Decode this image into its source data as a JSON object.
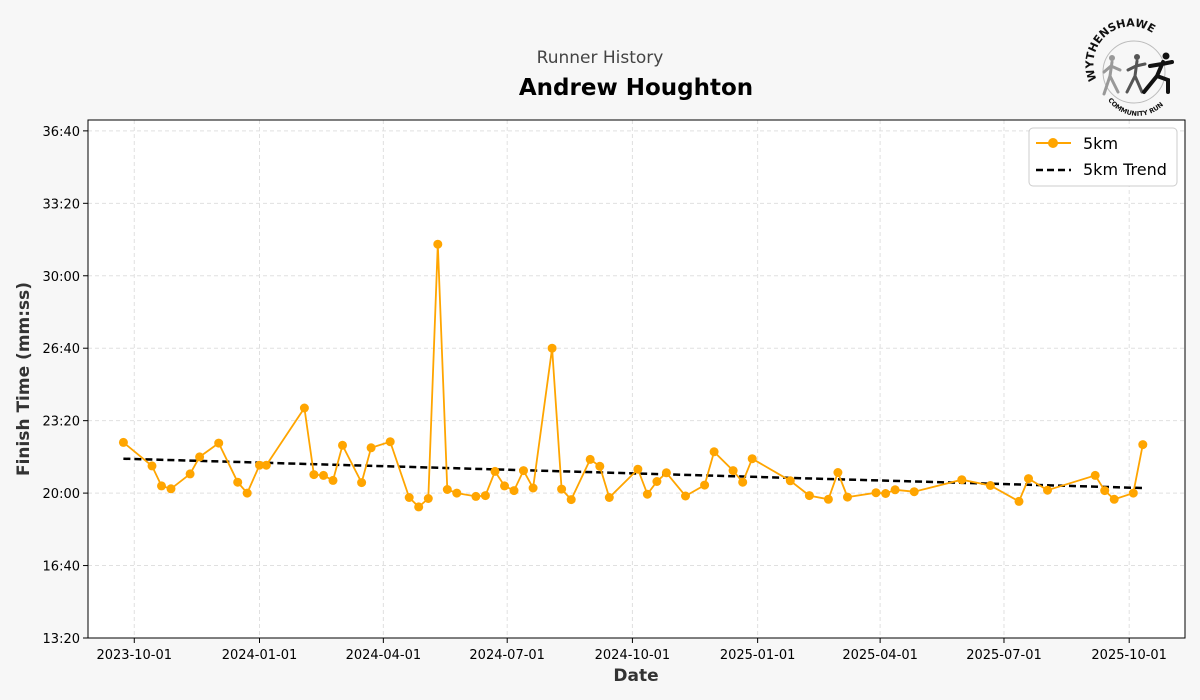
{
  "chart_data": {
    "type": "line",
    "suptitle": "Runner History",
    "title": "Andrew Houghton",
    "xlabel": "Date",
    "ylabel": "Finish Time (mm:ss)",
    "x_type": "date",
    "xlim": [
      "2023-08-28",
      "2025-11-11"
    ],
    "ylim_seconds": [
      800,
      2230
    ],
    "y_ticks": [
      "13:20",
      "16:40",
      "20:00",
      "23:20",
      "26:40",
      "30:00",
      "33:20",
      "36:40"
    ],
    "x_ticks": [
      "2023-10-01",
      "2024-01-01",
      "2024-04-01",
      "2024-07-01",
      "2024-10-01",
      "2025-01-01",
      "2025-04-01",
      "2025-07-01",
      "2025-10-01"
    ],
    "grid": true,
    "legend_position": "top-right",
    "colors": {
      "series": "#FFA500",
      "trend": "#000000",
      "background": "#f7f7f7"
    },
    "series": [
      {
        "name": "5km",
        "style": "line-marker",
        "points": [
          [
            "2023-09-23",
            "22:20"
          ],
          [
            "2023-10-14",
            "21:15"
          ],
          [
            "2023-10-21",
            "20:20"
          ],
          [
            "2023-10-28",
            "20:12"
          ],
          [
            "2023-11-11",
            "20:53"
          ],
          [
            "2023-11-18",
            "21:40"
          ],
          [
            "2023-12-02",
            "22:18"
          ],
          [
            "2023-12-16",
            "20:30"
          ],
          [
            "2023-12-23",
            "20:00"
          ],
          [
            "2024-01-01",
            "21:17"
          ],
          [
            "2024-01-06",
            "21:17"
          ],
          [
            "2024-02-03",
            "23:55"
          ],
          [
            "2024-02-10",
            "20:51"
          ],
          [
            "2024-02-17",
            "20:49"
          ],
          [
            "2024-02-24",
            "20:35"
          ],
          [
            "2024-03-02",
            "22:12"
          ],
          [
            "2024-03-16",
            "20:29"
          ],
          [
            "2024-03-23",
            "22:05"
          ],
          [
            "2024-04-06",
            "22:22"
          ],
          [
            "2024-04-20",
            "19:48"
          ],
          [
            "2024-04-27",
            "19:22"
          ],
          [
            "2024-05-04",
            "19:45"
          ],
          [
            "2024-05-11",
            "31:27"
          ],
          [
            "2024-05-18",
            "20:10"
          ],
          [
            "2024-05-25",
            "20:00"
          ],
          [
            "2024-06-08",
            "19:51"
          ],
          [
            "2024-06-15",
            "19:53"
          ],
          [
            "2024-06-22",
            "21:00"
          ],
          [
            "2024-06-29",
            "20:20"
          ],
          [
            "2024-07-06",
            "20:07"
          ],
          [
            "2024-07-13",
            "21:02"
          ],
          [
            "2024-07-20",
            "20:14"
          ],
          [
            "2024-08-03",
            "26:40"
          ],
          [
            "2024-08-10",
            "20:11"
          ],
          [
            "2024-08-17",
            "19:42"
          ],
          [
            "2024-08-31",
            "21:33"
          ],
          [
            "2024-09-07",
            "21:14"
          ],
          [
            "2024-09-14",
            "19:48"
          ],
          [
            "2024-10-05",
            "21:06"
          ],
          [
            "2024-10-12",
            "19:57"
          ],
          [
            "2024-10-19",
            "20:32"
          ],
          [
            "2024-10-26",
            "20:56"
          ],
          [
            "2024-11-09",
            "19:52"
          ],
          [
            "2024-11-23",
            "20:22"
          ],
          [
            "2024-11-30",
            "21:54"
          ],
          [
            "2024-12-14",
            "21:02"
          ],
          [
            "2024-12-21",
            "20:30"
          ],
          [
            "2024-12-28",
            "21:35"
          ],
          [
            "2025-01-25",
            "20:34"
          ],
          [
            "2025-02-08",
            "19:53"
          ],
          [
            "2025-02-22",
            "19:43"
          ],
          [
            "2025-03-01",
            "20:57"
          ],
          [
            "2025-03-08",
            "19:49"
          ],
          [
            "2025-03-29",
            "20:01"
          ],
          [
            "2025-04-05",
            "19:59"
          ],
          [
            "2025-04-12",
            "20:09"
          ],
          [
            "2025-04-26",
            "20:04"
          ],
          [
            "2025-05-31",
            "20:37"
          ],
          [
            "2025-06-21",
            "20:21"
          ],
          [
            "2025-07-12",
            "19:37"
          ],
          [
            "2025-07-19",
            "20:40"
          ],
          [
            "2025-08-02",
            "20:08"
          ],
          [
            "2025-09-06",
            "20:49"
          ],
          [
            "2025-09-13",
            "20:07"
          ],
          [
            "2025-09-20",
            "19:43"
          ],
          [
            "2025-10-04",
            "20:00"
          ],
          [
            "2025-10-11",
            "22:14"
          ]
        ]
      },
      {
        "name": "5km Trend",
        "style": "dashed",
        "points": [
          [
            "2023-09-23",
            "21:35"
          ],
          [
            "2025-10-11",
            "20:14"
          ]
        ]
      }
    ]
  },
  "logo": {
    "top_text": "WYTHENSHAWE",
    "bottom_text": "COMMUNITY RUN"
  }
}
